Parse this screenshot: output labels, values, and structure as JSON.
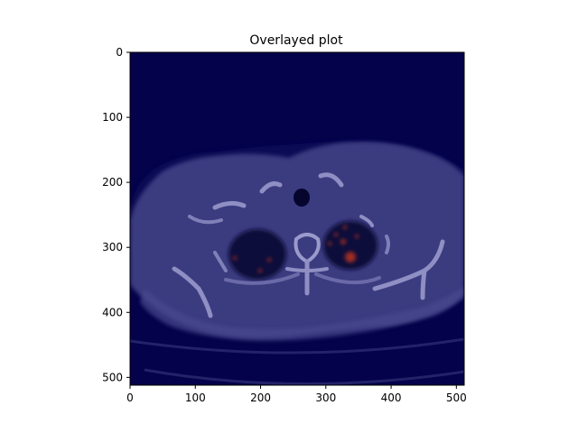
{
  "figure": {
    "title": "Overlayed plot",
    "image_kind": "axial CT scan of the chest with a jet-colormap heatmap overlay (mostly dark blue) and small red/orange spots in both lungs",
    "x_ticks": [
      "0",
      "100",
      "200",
      "300",
      "400",
      "500"
    ],
    "y_ticks": [
      "0",
      "100",
      "200",
      "300",
      "400",
      "500"
    ],
    "x_range": [
      0,
      512
    ],
    "y_range": [
      0,
      512
    ],
    "colors": {
      "background_overlay": "#03024a",
      "tissue": "#3a3a80",
      "lung": "#0d0c3a",
      "bone": "#7d7db5",
      "hotspot": "#b8321c"
    }
  }
}
